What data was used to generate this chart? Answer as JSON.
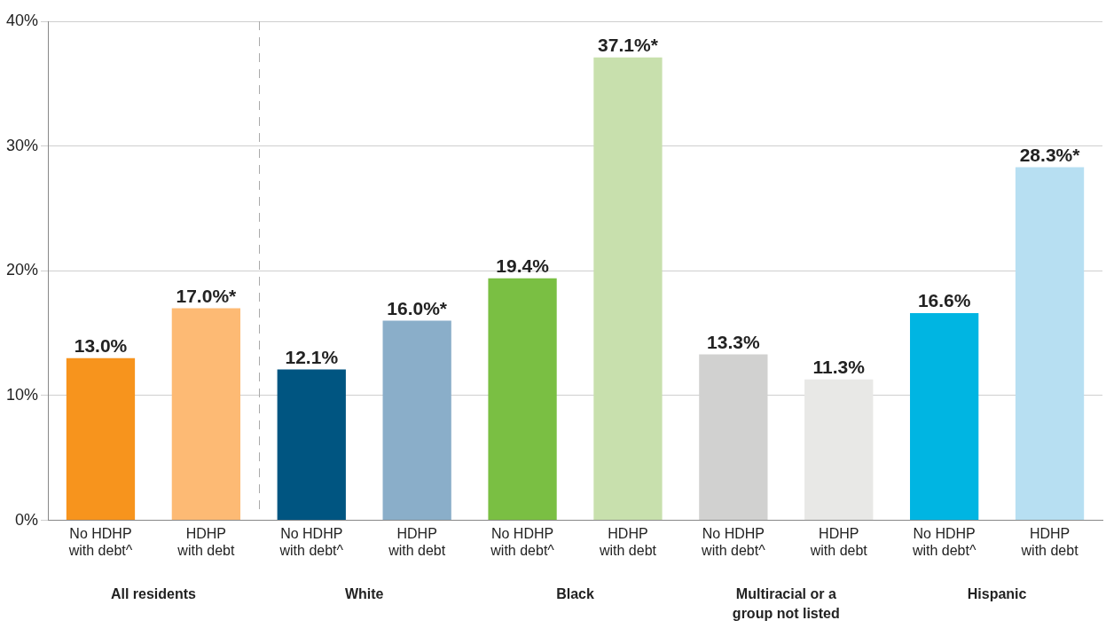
{
  "chart_data": {
    "type": "bar",
    "categories": [
      "No HDHP\nwith debt^",
      "HDHP\nwith debt",
      "No HDHP\nwith debt^",
      "HDHP\nwith debt",
      "No HDHP\nwith debt^",
      "HDHP\nwith debt",
      "No HDHP\nwith debt^",
      "HDHP\nwith debt",
      "No HDHP\nwith debt^",
      "HDHP\nwith debt"
    ],
    "values": [
      13.0,
      17.0,
      12.1,
      16.0,
      19.4,
      37.1,
      13.3,
      11.3,
      16.6,
      28.3
    ],
    "colors": [
      "#f7941d",
      "#fdba74",
      "#005581",
      "#8aaec9",
      "#7abf43",
      "#c8e0ad",
      "#d1d1d0",
      "#e8e8e6",
      "#00b5e2",
      "#b7dff2"
    ],
    "value_labels": [
      "13.0%",
      "17.0%*",
      "12.1%",
      "16.0%*",
      "19.4%",
      "37.1%*",
      "13.3%",
      "11.3%",
      "16.6%",
      "28.3%*"
    ],
    "annotations": [
      "All residents",
      "White",
      "Black",
      "Multiracial or a\ngroup not listed",
      "Hispanic"
    ],
    "ylim": [
      0,
      40
    ],
    "yticks": [
      {
        "value": 0,
        "label": "0%"
      },
      {
        "value": 10,
        "label": "10%"
      },
      {
        "value": 20,
        "label": "20%"
      },
      {
        "value": 30,
        "label": "30%"
      },
      {
        "value": 40,
        "label": "40%"
      }
    ],
    "grid": "y",
    "legend": false
  }
}
